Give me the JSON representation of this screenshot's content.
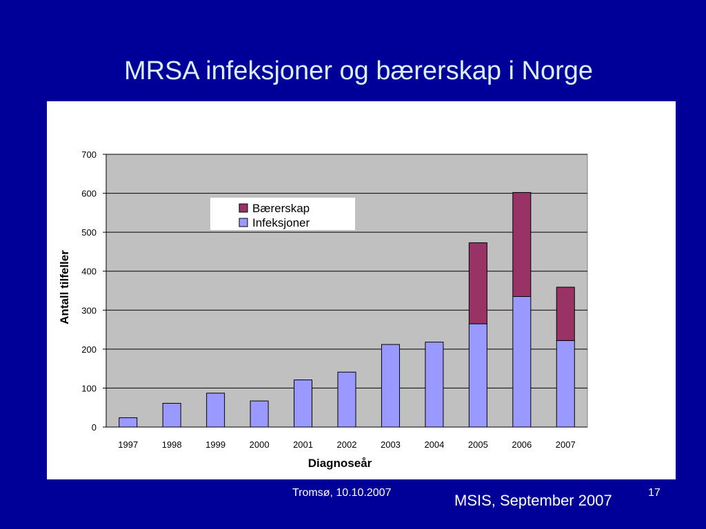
{
  "slide": {
    "title": "MRSA infeksjoner og bærerskap i Norge",
    "footer_left": "Tromsø, 10.10.2007",
    "footer_right": "MSIS, September 2007",
    "page_number": "17"
  },
  "colors": {
    "background": "#000099",
    "title": "#d9f0ff",
    "plot_area": "#c0c0c0",
    "infeksjoner": "#9999ff",
    "baererskap": "#993366"
  },
  "chart_data": {
    "type": "bar",
    "stacked": true,
    "xlabel": "Diagnoseår",
    "ylabel": "Antall tilfeller",
    "ylim": [
      0,
      700
    ],
    "yticks": [
      0,
      100,
      200,
      300,
      400,
      500,
      600,
      700
    ],
    "categories": [
      "1997",
      "1998",
      "1999",
      "2000",
      "2001",
      "2002",
      "2003",
      "2004",
      "2005",
      "2006",
      "2007"
    ],
    "series": [
      {
        "name": "Infeksjoner",
        "values": [
          24,
          61,
          87,
          67,
          121,
          141,
          212,
          218,
          265,
          335,
          222
        ]
      },
      {
        "name": "Bærerskap",
        "values": [
          0,
          0,
          0,
          0,
          0,
          0,
          0,
          0,
          208,
          267,
          137
        ]
      }
    ],
    "legend": {
      "position": "top-center-left",
      "order": [
        "Bærerskap",
        "Infeksjoner"
      ]
    },
    "grid": true
  }
}
